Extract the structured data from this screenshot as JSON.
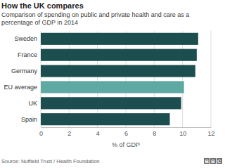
{
  "chart_data": {
    "type": "bar",
    "orientation": "horizontal",
    "title": "How the UK compares",
    "subtitle": "Comparison of spending on public and private health and care as a percentage of GDP in 2014",
    "categories": [
      "Sweden",
      "France",
      "Germany",
      "EU average",
      "UK",
      "Spain"
    ],
    "values": [
      11.1,
      11.0,
      10.9,
      10.1,
      9.9,
      9.1
    ],
    "colors": [
      "#1d4e4f",
      "#1d4e4f",
      "#1d4e4f",
      "#5ea9a2",
      "#1d4e4f",
      "#1d4e4f"
    ],
    "xlim": [
      0,
      12
    ],
    "xticks": [
      0,
      2,
      4,
      6,
      8,
      10,
      12
    ],
    "xlabel": "% of GDP",
    "grid": true,
    "annotations": [
      "Source: Nuffield Trust / Health Foundation",
      "BBC"
    ]
  }
}
